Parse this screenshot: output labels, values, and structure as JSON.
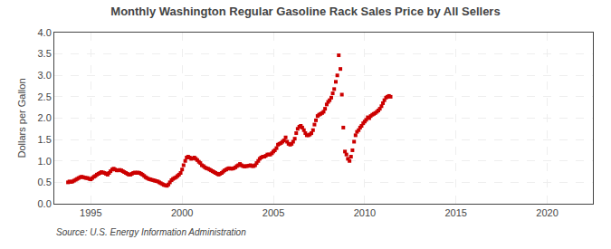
{
  "chart_data": {
    "type": "scatter",
    "title": "Monthly Washington Regular Gasoline Rack Sales Price by All Sellers",
    "ylabel": "Dollars per Gallon",
    "source": "Source: U.S. Energy Information Administration",
    "color": "#cc0000",
    "marker": "square",
    "grid": true,
    "xlim": [
      1993.0,
      2022.5
    ],
    "ylim": [
      0.0,
      4.0
    ],
    "xticks": [
      1995,
      2000,
      2005,
      2010,
      2015,
      2020
    ],
    "yticks": [
      {
        "value": 0.0,
        "label": "0.0"
      },
      0.5,
      {
        "value": 1.0,
        "label": "1.0"
      },
      1.5,
      {
        "value": 2.0,
        "label": "2.0"
      },
      2.5,
      {
        "value": 3.0,
        "label": "3.0"
      },
      3.5,
      {
        "value": 4.0,
        "label": "4.0"
      }
    ],
    "x": [
      1993.75,
      1993.83,
      1993.92,
      1994.0,
      1994.08,
      1994.17,
      1994.25,
      1994.33,
      1994.42,
      1994.5,
      1994.58,
      1994.67,
      1994.75,
      1994.83,
      1994.92,
      1995.0,
      1995.08,
      1995.17,
      1995.25,
      1995.33,
      1995.42,
      1995.5,
      1995.58,
      1995.67,
      1995.75,
      1995.83,
      1995.92,
      1996.0,
      1996.08,
      1996.17,
      1996.25,
      1996.33,
      1996.42,
      1996.5,
      1996.58,
      1996.67,
      1996.75,
      1996.83,
      1996.92,
      1997.0,
      1997.08,
      1997.17,
      1997.25,
      1997.33,
      1997.42,
      1997.5,
      1997.58,
      1997.67,
      1997.75,
      1997.83,
      1997.92,
      1998.0,
      1998.08,
      1998.17,
      1998.25,
      1998.33,
      1998.42,
      1998.5,
      1998.58,
      1998.67,
      1998.75,
      1998.83,
      1998.92,
      1999.0,
      1999.08,
      1999.17,
      1999.25,
      1999.33,
      1999.42,
      1999.5,
      1999.58,
      1999.67,
      1999.75,
      1999.83,
      1999.92,
      2000.0,
      2000.08,
      2000.17,
      2000.25,
      2000.33,
      2000.42,
      2000.5,
      2000.58,
      2000.67,
      2000.75,
      2000.83,
      2000.92,
      2001.0,
      2001.08,
      2001.17,
      2001.25,
      2001.33,
      2001.42,
      2001.5,
      2001.58,
      2001.67,
      2001.75,
      2001.83,
      2001.92,
      2002.0,
      2002.08,
      2002.17,
      2002.25,
      2002.33,
      2002.42,
      2002.5,
      2002.58,
      2002.67,
      2002.75,
      2002.83,
      2002.92,
      2003.0,
      2003.08,
      2003.17,
      2003.25,
      2003.33,
      2003.42,
      2003.5,
      2003.58,
      2003.67,
      2003.75,
      2003.83,
      2003.92,
      2004.0,
      2004.08,
      2004.17,
      2004.25,
      2004.33,
      2004.42,
      2004.5,
      2004.58,
      2004.67,
      2004.75,
      2004.83,
      2004.92,
      2005.0,
      2005.08,
      2005.17,
      2005.25,
      2005.33,
      2005.42,
      2005.5,
      2005.58,
      2005.67,
      2005.75,
      2005.83,
      2005.92,
      2006.0,
      2006.08,
      2006.17,
      2006.25,
      2006.33,
      2006.42,
      2006.5,
      2006.58,
      2006.67,
      2006.75,
      2006.83,
      2006.92,
      2007.0,
      2007.08,
      2007.17,
      2007.25,
      2007.33,
      2007.42,
      2007.5,
      2007.58,
      2007.67,
      2007.75,
      2007.83,
      2007.92,
      2008.0,
      2008.08,
      2008.17,
      2008.25,
      2008.33,
      2008.42,
      2008.5,
      2008.58,
      2008.67,
      2008.75,
      2008.83,
      2008.92,
      2009.0,
      2009.08,
      2009.17,
      2009.25,
      2009.33,
      2009.42,
      2009.5,
      2009.58,
      2009.67,
      2009.75,
      2009.83,
      2009.92,
      2010.0,
      2010.08,
      2010.17,
      2010.25,
      2010.33,
      2010.42,
      2010.5,
      2010.58,
      2010.67,
      2010.75,
      2010.83,
      2010.92,
      2011.0,
      2011.08,
      2011.17,
      2011.25,
      2011.33,
      2011.42
    ],
    "values": [
      0.5,
      0.52,
      0.51,
      0.52,
      0.54,
      0.56,
      0.58,
      0.6,
      0.62,
      0.63,
      0.62,
      0.61,
      0.6,
      0.6,
      0.58,
      0.57,
      0.6,
      0.63,
      0.65,
      0.68,
      0.7,
      0.72,
      0.74,
      0.73,
      0.72,
      0.7,
      0.68,
      0.72,
      0.76,
      0.8,
      0.82,
      0.8,
      0.78,
      0.78,
      0.79,
      0.78,
      0.76,
      0.74,
      0.72,
      0.7,
      0.68,
      0.68,
      0.7,
      0.72,
      0.73,
      0.72,
      0.73,
      0.72,
      0.7,
      0.68,
      0.65,
      0.62,
      0.6,
      0.58,
      0.57,
      0.56,
      0.55,
      0.54,
      0.53,
      0.52,
      0.5,
      0.48,
      0.46,
      0.44,
      0.43,
      0.42,
      0.45,
      0.5,
      0.55,
      0.58,
      0.6,
      0.62,
      0.65,
      0.68,
      0.72,
      0.8,
      0.9,
      1.0,
      1.08,
      1.1,
      1.08,
      1.05,
      1.06,
      1.08,
      1.05,
      1.02,
      0.98,
      0.95,
      0.9,
      0.88,
      0.85,
      0.83,
      0.82,
      0.8,
      0.78,
      0.76,
      0.74,
      0.72,
      0.7,
      0.68,
      0.7,
      0.72,
      0.75,
      0.78,
      0.8,
      0.82,
      0.83,
      0.82,
      0.82,
      0.83,
      0.85,
      0.88,
      0.9,
      0.93,
      0.9,
      0.88,
      0.87,
      0.88,
      0.88,
      0.89,
      0.9,
      0.88,
      0.88,
      0.9,
      0.95,
      1.0,
      1.05,
      1.08,
      1.1,
      1.1,
      1.12,
      1.15,
      1.15,
      1.15,
      1.18,
      1.22,
      1.25,
      1.3,
      1.38,
      1.4,
      1.42,
      1.45,
      1.48,
      1.55,
      1.45,
      1.4,
      1.38,
      1.4,
      1.45,
      1.52,
      1.65,
      1.75,
      1.8,
      1.82,
      1.78,
      1.72,
      1.65,
      1.6,
      1.6,
      1.62,
      1.65,
      1.72,
      1.85,
      1.95,
      2.05,
      2.08,
      2.1,
      2.12,
      2.15,
      2.22,
      2.32,
      2.38,
      2.42,
      2.48,
      2.58,
      2.68,
      2.85,
      3.0,
      3.47,
      3.15,
      2.55,
      1.78,
      1.22,
      1.15,
      1.05,
      1.0,
      1.1,
      1.25,
      1.45,
      1.6,
      1.68,
      1.72,
      1.78,
      1.82,
      1.88,
      1.92,
      1.96,
      2.02,
      2.0,
      2.05,
      2.08,
      2.1,
      2.12,
      2.15,
      2.18,
      2.22,
      2.28,
      2.35,
      2.42,
      2.48,
      2.5,
      2.52,
      2.5
    ]
  }
}
